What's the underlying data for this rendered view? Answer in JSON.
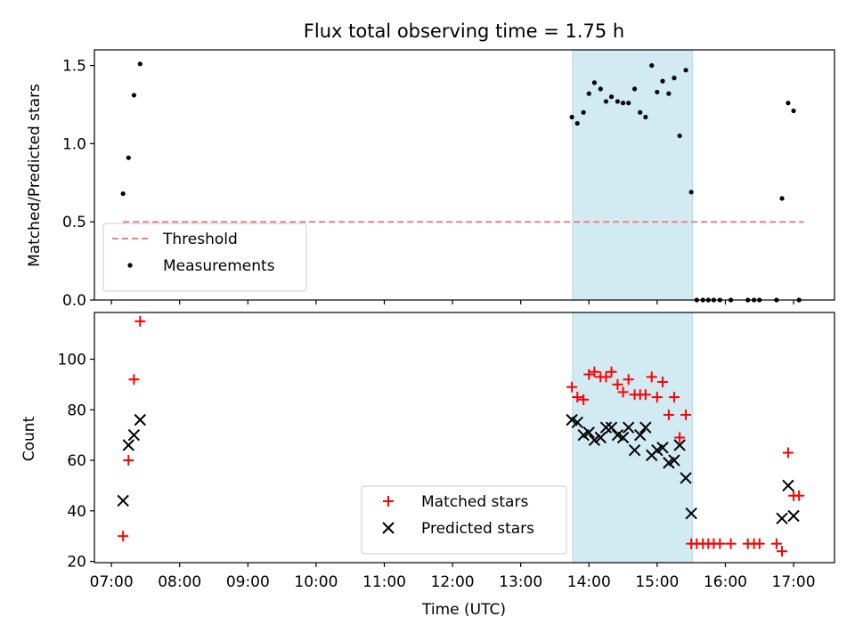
{
  "chart_data": {
    "type": "scatter",
    "title": "Flux total observing time = 1.75 h",
    "xlabel": "Time (UTC)",
    "x_units": "hours UTC",
    "xlim": [
      6.75,
      17.6
    ],
    "x_ticks": [
      {
        "value": 7,
        "label": "07:00"
      },
      {
        "value": 8,
        "label": "08:00"
      },
      {
        "value": 9,
        "label": "09:00"
      },
      {
        "value": 10,
        "label": "10:00"
      },
      {
        "value": 11,
        "label": "11:00"
      },
      {
        "value": 12,
        "label": "12:00"
      },
      {
        "value": 13,
        "label": "13:00"
      },
      {
        "value": 14,
        "label": "14:00"
      },
      {
        "value": 15,
        "label": "15:00"
      },
      {
        "value": 16,
        "label": "16:00"
      },
      {
        "value": 17,
        "label": "17:00"
      }
    ],
    "highlight_span": {
      "start": 13.76,
      "end": 15.52,
      "color": "#add8e6"
    },
    "panels": [
      {
        "ylabel": "Matched/Predicted stars",
        "ylim": [
          0,
          1.6
        ],
        "y_ticks": [
          {
            "value": 0,
            "label": "0.0"
          },
          {
            "value": 0.5,
            "label": "0.5"
          },
          {
            "value": 1.0,
            "label": "1.0"
          },
          {
            "value": 1.5,
            "label": "1.5"
          }
        ],
        "legend_position": "lower-left",
        "threshold": {
          "name": "Threshold",
          "value": 0.5,
          "x_start": 7.17,
          "x_end": 17.15,
          "color": "#f08080"
        },
        "series": [
          {
            "name": "Measurements",
            "marker": "dot",
            "color": "#000000",
            "points": [
              [
                7.17,
                0.68
              ],
              [
                7.25,
                0.91
              ],
              [
                7.33,
                1.31
              ],
              [
                7.42,
                1.51
              ],
              [
                13.75,
                1.17
              ],
              [
                13.83,
                1.13
              ],
              [
                13.92,
                1.2
              ],
              [
                14.0,
                1.32
              ],
              [
                14.08,
                1.39
              ],
              [
                14.17,
                1.35
              ],
              [
                14.25,
                1.27
              ],
              [
                14.33,
                1.3
              ],
              [
                14.42,
                1.27
              ],
              [
                14.5,
                1.26
              ],
              [
                14.58,
                1.26
              ],
              [
                14.67,
                1.35
              ],
              [
                14.75,
                1.2
              ],
              [
                14.83,
                1.17
              ],
              [
                14.92,
                1.5
              ],
              [
                15.0,
                1.33
              ],
              [
                15.08,
                1.4
              ],
              [
                15.17,
                1.32
              ],
              [
                15.25,
                1.42
              ],
              [
                15.33,
                1.05
              ],
              [
                15.42,
                1.47
              ],
              [
                15.5,
                0.69
              ],
              [
                15.58,
                0.0
              ],
              [
                15.67,
                0.0
              ],
              [
                15.75,
                0.0
              ],
              [
                15.83,
                0.0
              ],
              [
                15.92,
                0.0
              ],
              [
                16.08,
                0.0
              ],
              [
                16.33,
                0.0
              ],
              [
                16.42,
                0.0
              ],
              [
                16.5,
                0.0
              ],
              [
                16.75,
                0.0
              ],
              [
                16.83,
                0.65
              ],
              [
                16.92,
                1.26
              ],
              [
                17.0,
                1.21
              ],
              [
                17.08,
                0.0
              ]
            ]
          }
        ]
      },
      {
        "ylabel": "Count",
        "ylim": [
          19.5,
          118.5
        ],
        "y_ticks": [
          {
            "value": 20,
            "label": "20"
          },
          {
            "value": 40,
            "label": "40"
          },
          {
            "value": 60,
            "label": "60"
          },
          {
            "value": 80,
            "label": "80"
          },
          {
            "value": 100,
            "label": "100"
          }
        ],
        "legend_position": "lower-center",
        "series": [
          {
            "name": "Matched stars",
            "marker": "plus",
            "color": "#ff0000",
            "points": [
              [
                7.17,
                30
              ],
              [
                7.25,
                60
              ],
              [
                7.33,
                92
              ],
              [
                7.42,
                115
              ],
              [
                13.75,
                89
              ],
              [
                13.83,
                85
              ],
              [
                13.92,
                84
              ],
              [
                14.0,
                94
              ],
              [
                14.08,
                95
              ],
              [
                14.17,
                93
              ],
              [
                14.25,
                93
              ],
              [
                14.33,
                95
              ],
              [
                14.42,
                90
              ],
              [
                14.5,
                87
              ],
              [
                14.58,
                92
              ],
              [
                14.67,
                86
              ],
              [
                14.75,
                86
              ],
              [
                14.83,
                86
              ],
              [
                14.92,
                93
              ],
              [
                15.0,
                85
              ],
              [
                15.08,
                91
              ],
              [
                15.17,
                78
              ],
              [
                15.25,
                85
              ],
              [
                15.33,
                69
              ],
              [
                15.42,
                78
              ],
              [
                15.5,
                27
              ],
              [
                15.58,
                27
              ],
              [
                15.67,
                27
              ],
              [
                15.75,
                27
              ],
              [
                15.83,
                27
              ],
              [
                15.92,
                27
              ],
              [
                16.08,
                27
              ],
              [
                16.33,
                27
              ],
              [
                16.42,
                27
              ],
              [
                16.5,
                27
              ],
              [
                16.75,
                27
              ],
              [
                16.83,
                24
              ],
              [
                16.92,
                63
              ],
              [
                17.0,
                46
              ],
              [
                17.08,
                46
              ]
            ]
          },
          {
            "name": "Predicted stars",
            "marker": "x",
            "color": "#000000",
            "points": [
              [
                7.17,
                44
              ],
              [
                7.25,
                66
              ],
              [
                7.33,
                70
              ],
              [
                7.42,
                76
              ],
              [
                13.75,
                76
              ],
              [
                13.83,
                75
              ],
              [
                13.92,
                70
              ],
              [
                14.0,
                71
              ],
              [
                14.08,
                68
              ],
              [
                14.17,
                69
              ],
              [
                14.25,
                73
              ],
              [
                14.33,
                73
              ],
              [
                14.42,
                70
              ],
              [
                14.5,
                69
              ],
              [
                14.58,
                73
              ],
              [
                14.67,
                64
              ],
              [
                14.75,
                70
              ],
              [
                14.83,
                73
              ],
              [
                14.92,
                62
              ],
              [
                15.0,
                64
              ],
              [
                15.08,
                65
              ],
              [
                15.17,
                59
              ],
              [
                15.25,
                60
              ],
              [
                15.33,
                66
              ],
              [
                15.42,
                53
              ],
              [
                15.5,
                39
              ],
              [
                16.83,
                37
              ],
              [
                16.92,
                50
              ],
              [
                17.0,
                38
              ]
            ]
          }
        ]
      }
    ]
  }
}
